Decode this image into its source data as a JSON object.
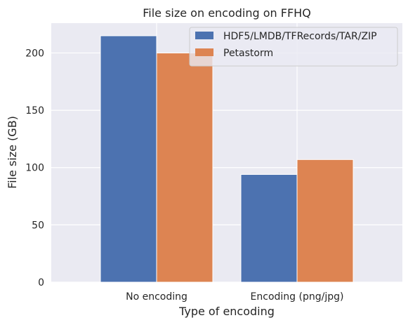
{
  "chart_data": {
    "type": "bar",
    "title": "File size on encoding on FFHQ",
    "xlabel": "Type of encoding",
    "ylabel": "File size (GB)",
    "categories": [
      "No encoding",
      "Encoding (png/jpg)"
    ],
    "series": [
      {
        "name": "HDF5/LMDB/TFRecords/TAR/ZIP",
        "values": [
          215,
          94
        ],
        "color": "#4c72b0"
      },
      {
        "name": "Petastorm",
        "values": [
          200,
          107
        ],
        "color": "#dd8452"
      }
    ],
    "ylim": [
      0,
      226
    ],
    "yticks": [
      0,
      50,
      100,
      150,
      200
    ],
    "grid": true,
    "legend_position": "top-right",
    "background_color": "#eaeaf2",
    "grid_color": "#ffffff"
  }
}
